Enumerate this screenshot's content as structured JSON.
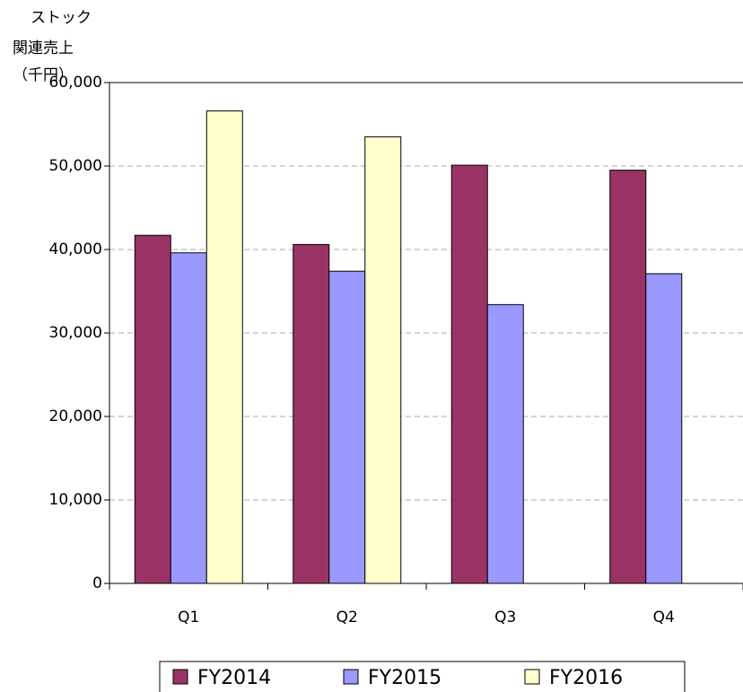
{
  "chart_data": {
    "type": "bar",
    "y_label": [
      "ストック",
      "関連売上",
      "（千円）"
    ],
    "categories": [
      "Q1",
      "Q2",
      "Q3",
      "Q4"
    ],
    "series": [
      {
        "name": "FY2014",
        "color": "#993366",
        "values": [
          41700,
          40600,
          50100,
          49500
        ]
      },
      {
        "name": "FY2015",
        "color": "#9999ff",
        "values": [
          39600,
          37400,
          33400,
          37100
        ]
      },
      {
        "name": "FY2016",
        "color": "#ffffcc",
        "values": [
          56600,
          53500,
          null,
          null
        ]
      }
    ],
    "ylim": [
      0,
      60000
    ],
    "yticks": [
      0,
      {
        "value": 10000,
        "label": "10,000"
      },
      {
        "value": 20000,
        "label": "20,000"
      },
      {
        "value": 30000,
        "label": "30,000"
      },
      {
        "value": 40000,
        "label": "40,000"
      },
      {
        "value": 50000,
        "label": "50,000"
      },
      {
        "value": 60000,
        "label": "60,000"
      }
    ],
    "grid": true,
    "legend": "bottom"
  }
}
